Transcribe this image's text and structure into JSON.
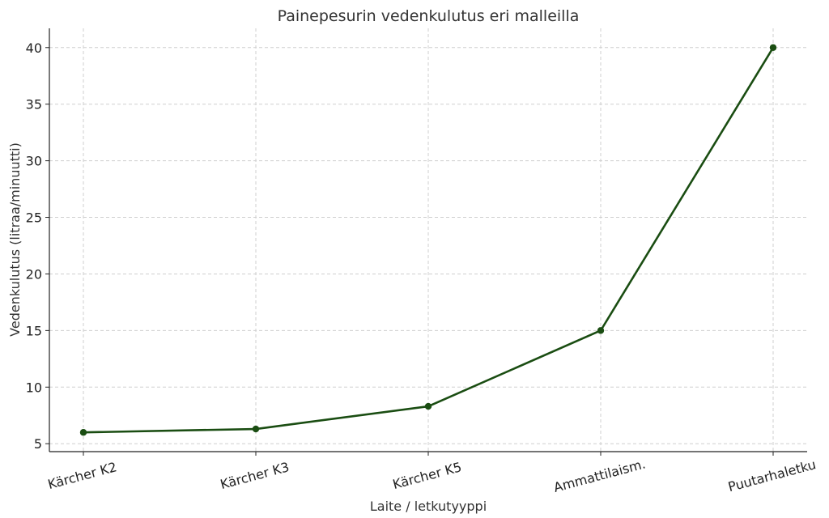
{
  "chart_data": {
    "type": "line",
    "title": "Painepesurin vedenkulutus eri malleilla",
    "xlabel": "Laite / letkutyyppi",
    "ylabel": "Vedenkulutus (litraa/minuutti)",
    "categories": [
      "Kärcher K2",
      "Kärcher K3",
      "Kärcher K5",
      "Ammattilaism.",
      "Puutarhaletku"
    ],
    "series": [
      {
        "values": [
          6,
          6.3,
          8.3,
          15,
          40
        ],
        "color": "#1a4d12"
      }
    ],
    "ylim": [
      4.3,
      41.7
    ],
    "yticks": [
      5,
      10,
      15,
      20,
      25,
      30,
      35,
      40
    ],
    "grid": true,
    "legend": "none"
  }
}
